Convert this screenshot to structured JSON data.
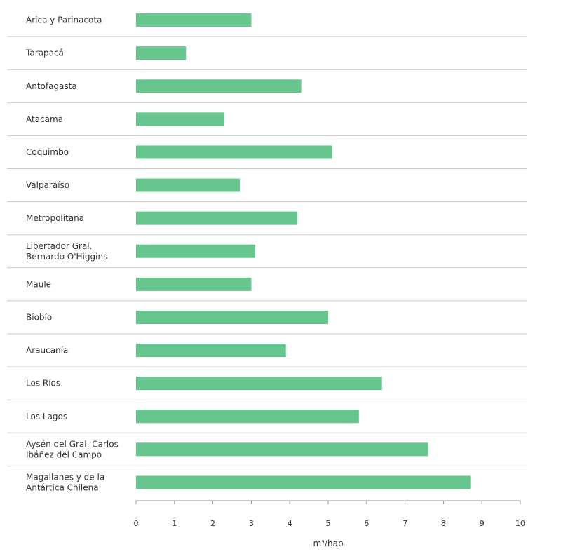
{
  "chart_data": {
    "type": "bar",
    "orientation": "horizontal",
    "categories": [
      [
        "Arica y Parinacota"
      ],
      [
        "Tarapacá"
      ],
      [
        "Antofagasta"
      ],
      [
        "Atacama"
      ],
      [
        "Coquimbo"
      ],
      [
        "Valparaíso"
      ],
      [
        "Metropolitana"
      ],
      [
        "Libertador Gral.",
        "Bernardo O'Higgins"
      ],
      [
        "Maule"
      ],
      [
        "Biobío"
      ],
      [
        "Araucanía"
      ],
      [
        "Los Ríos"
      ],
      [
        "Los Lagos"
      ],
      [
        "Aysén del Gral. Carlos",
        "Ibáñez del Campo"
      ],
      [
        "Magallanes y de la",
        "Antártica Chilena"
      ]
    ],
    "values": [
      3.0,
      1.3,
      4.3,
      2.3,
      5.1,
      2.7,
      4.2,
      3.1,
      3.0,
      5.0,
      3.9,
      6.4,
      5.8,
      7.6,
      8.7
    ],
    "xlabel": "m³/hab",
    "ylabel": "",
    "xlim": [
      0,
      10
    ],
    "xticks": [
      "0",
      "1",
      "2",
      "3",
      "4",
      "5",
      "6",
      "7",
      "8",
      "9",
      "10"
    ],
    "grid": "horizontal row separators",
    "bar_color": "#66c68e",
    "separator_color": "#c8c8c8",
    "axis_color": "#999999"
  }
}
